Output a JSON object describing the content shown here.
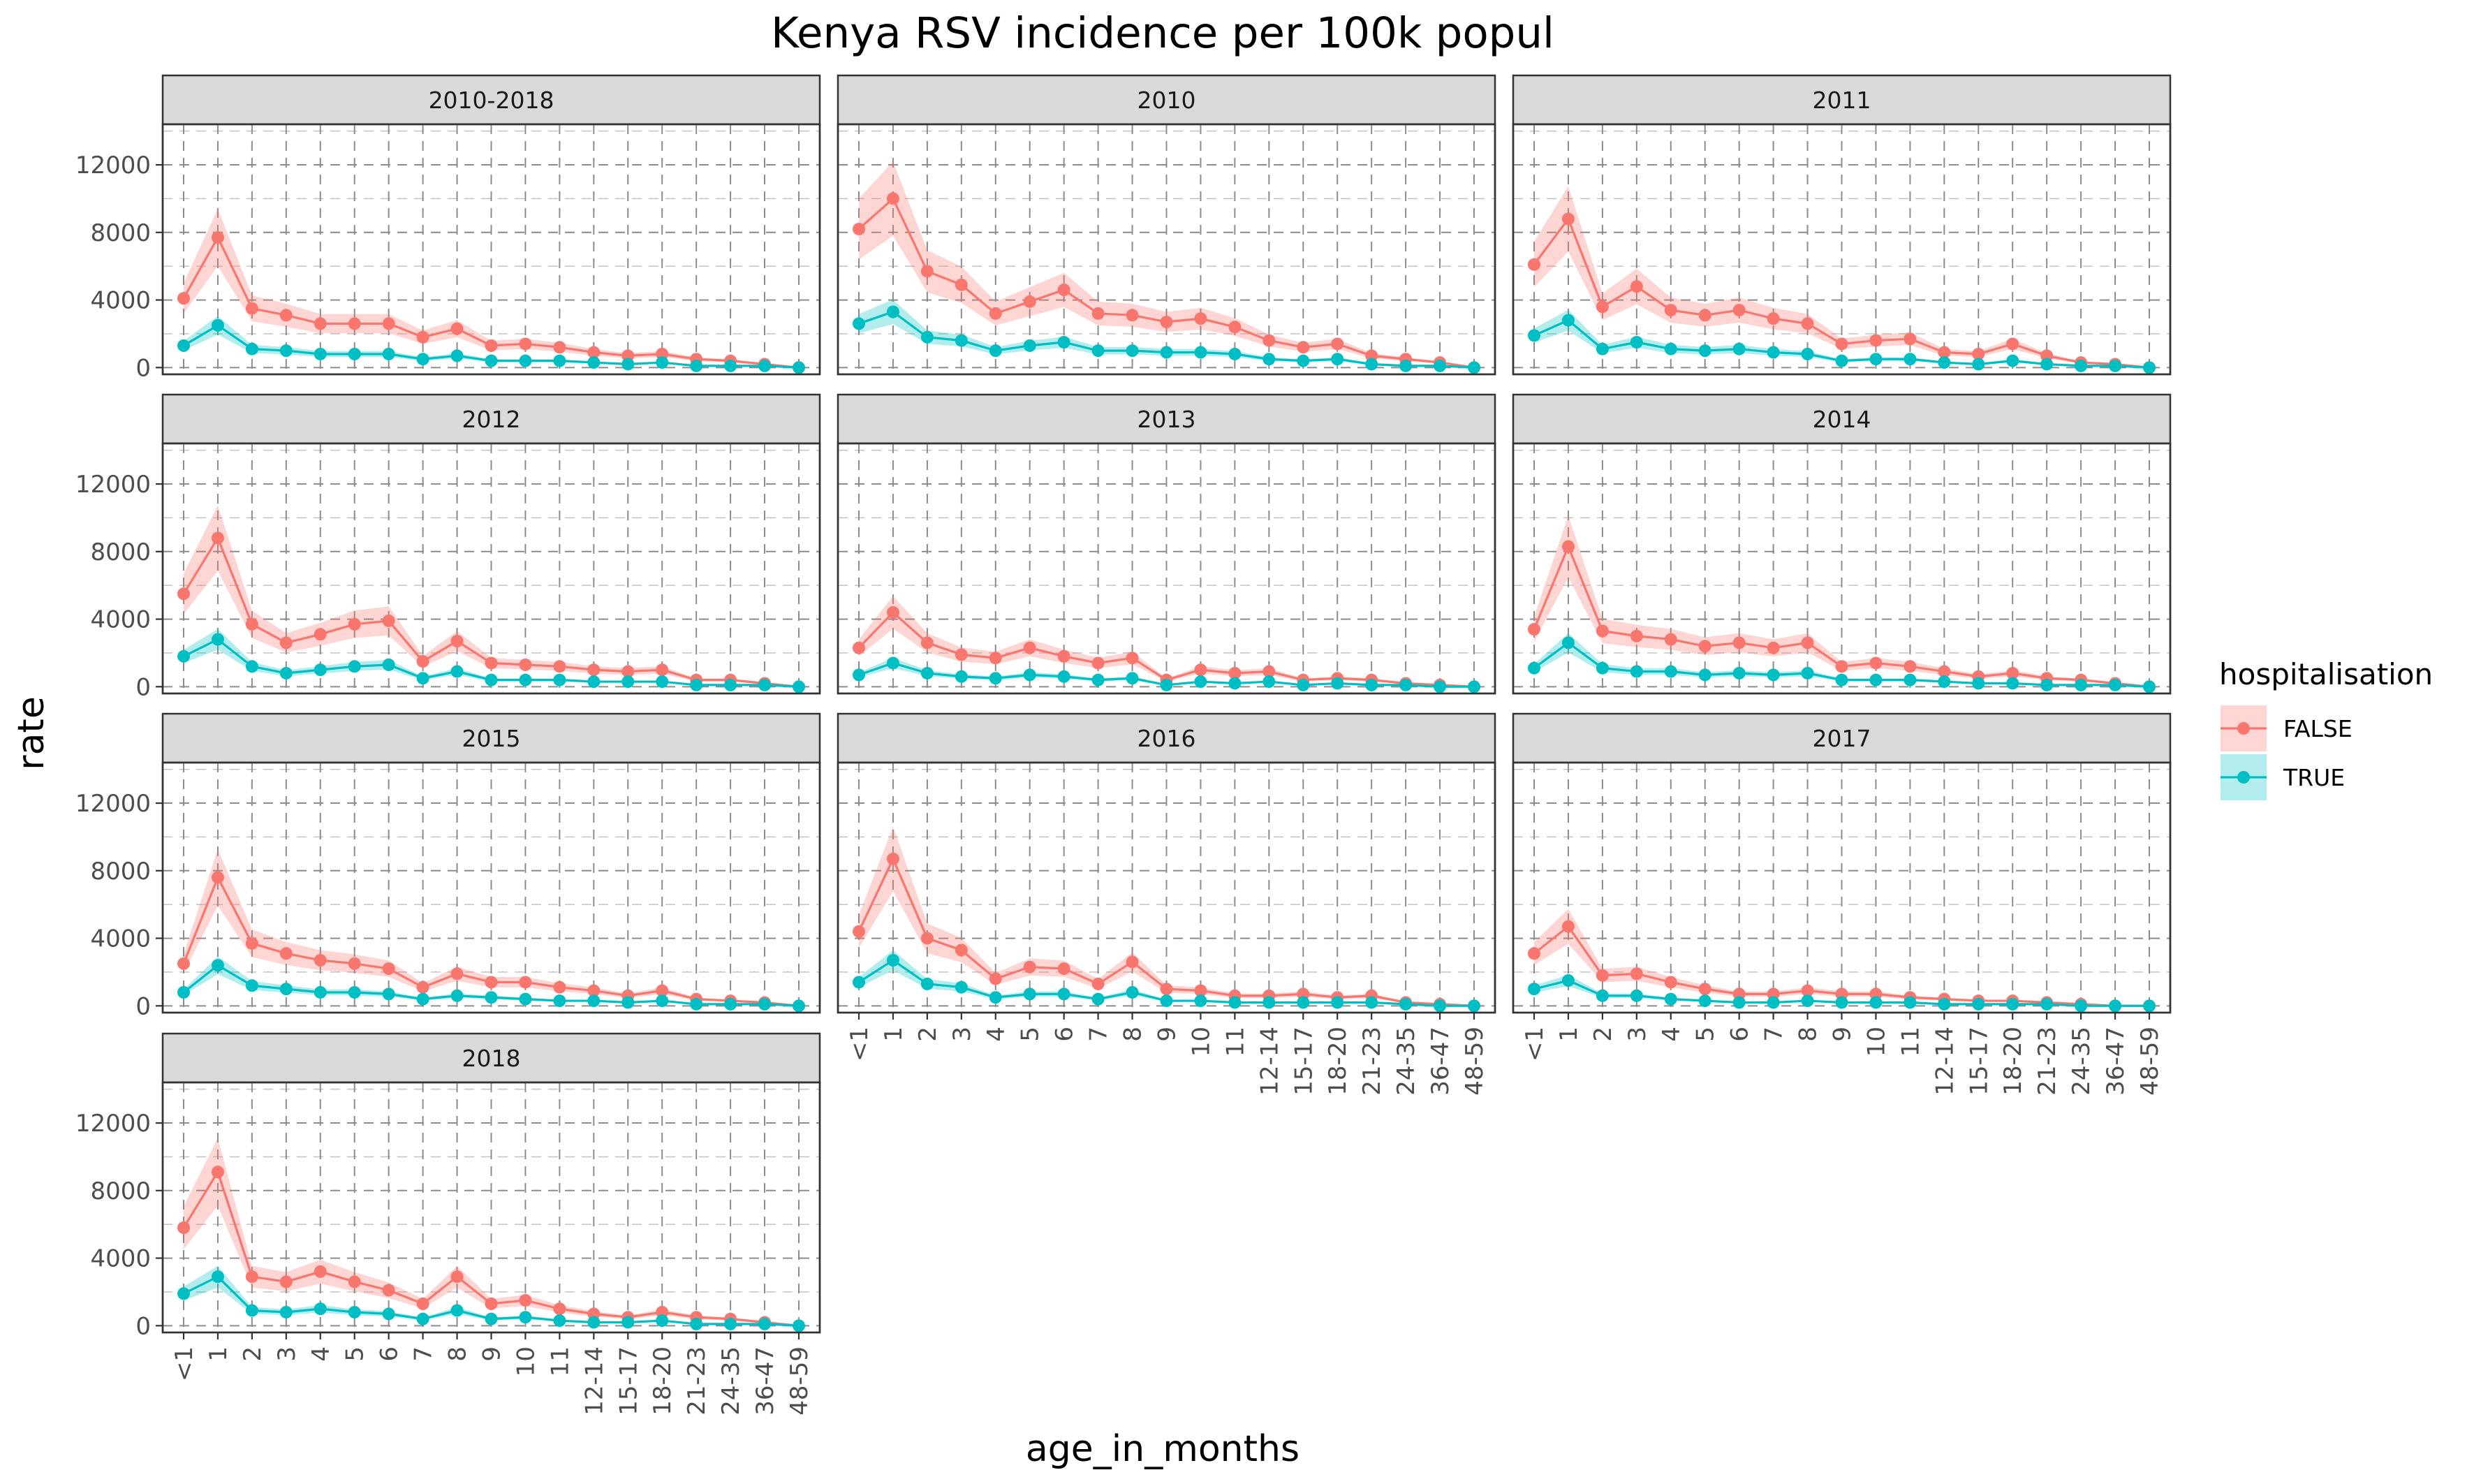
{
  "chart_data": {
    "type": "line",
    "title": "Kenya RSV incidence per 100k popul",
    "xlabel": "age_in_months",
    "ylabel": "rate",
    "ylim": [
      -400,
      14400
    ],
    "y_ticks": [
      0,
      4000,
      8000,
      12000
    ],
    "y_tick_labels": [
      "0",
      "4000",
      "8000",
      "12000"
    ],
    "grid": true,
    "legend": {
      "title": "hospitalisation",
      "placement": "right",
      "entries": [
        {
          "label": "FALSE",
          "color": "#F8766D",
          "ribbon_color": "#F8766D"
        },
        {
          "label": "TRUE",
          "color": "#00BFC4",
          "ribbon_color": "#00BFC4"
        }
      ]
    },
    "categories": [
      "<1",
      "1",
      "2",
      "3",
      "4",
      "5",
      "6",
      "7",
      "8",
      "9",
      "10",
      "11",
      "12-14",
      "15-17",
      "18-20",
      "21-23",
      "24-35",
      "36-47",
      "48-59"
    ],
    "facets": [
      {
        "label": "2010-2018",
        "series": [
          {
            "name": "FALSE",
            "values": [
              4100,
              7700,
              3500,
              3100,
              2600,
              2600,
              2600,
              1800,
              2300,
              1300,
              1400,
              1200,
              900,
              700,
              800,
              500,
              400,
              200,
              0
            ]
          },
          {
            "name": "TRUE",
            "values": [
              1300,
              2500,
              1100,
              1000,
              800,
              800,
              800,
              500,
              700,
              400,
              400,
              400,
              300,
              200,
              300,
              100,
              100,
              100,
              0
            ]
          }
        ]
      },
      {
        "label": "2010",
        "series": [
          {
            "name": "FALSE",
            "values": [
              8200,
              10000,
              5700,
              4900,
              3200,
              3900,
              4600,
              3200,
              3100,
              2700,
              2900,
              2400,
              1600,
              1200,
              1400,
              700,
              500,
              300,
              0
            ]
          },
          {
            "name": "TRUE",
            "values": [
              2600,
              3300,
              1800,
              1600,
              1000,
              1300,
              1500,
              1000,
              1000,
              900,
              900,
              800,
              500,
              400,
              500,
              200,
              100,
              100,
              0
            ]
          }
        ]
      },
      {
        "label": "2011",
        "series": [
          {
            "name": "FALSE",
            "values": [
              6100,
              8800,
              3600,
              4800,
              3400,
              3100,
              3400,
              2900,
              2600,
              1400,
              1600,
              1700,
              900,
              800,
              1400,
              700,
              300,
              200,
              0
            ]
          },
          {
            "name": "TRUE",
            "values": [
              1900,
              2800,
              1100,
              1500,
              1100,
              1000,
              1100,
              900,
              800,
              400,
              500,
              500,
              300,
              200,
              400,
              200,
              100,
              100,
              0
            ]
          }
        ]
      },
      {
        "label": "2012",
        "series": [
          {
            "name": "FALSE",
            "values": [
              5500,
              8800,
              3700,
              2600,
              3100,
              3700,
              3900,
              1500,
              2700,
              1400,
              1300,
              1200,
              1000,
              900,
              1000,
              400,
              400,
              200,
              0
            ]
          },
          {
            "name": "TRUE",
            "values": [
              1800,
              2800,
              1200,
              800,
              1000,
              1200,
              1300,
              500,
              900,
              400,
              400,
              400,
              300,
              300,
              300,
              100,
              100,
              100,
              0
            ]
          }
        ]
      },
      {
        "label": "2013",
        "series": [
          {
            "name": "FALSE",
            "values": [
              2300,
              4400,
              2600,
              1900,
              1700,
              2300,
              1800,
              1400,
              1700,
              400,
              1000,
              800,
              900,
              400,
              500,
              400,
              200,
              100,
              0
            ]
          },
          {
            "name": "TRUE",
            "values": [
              700,
              1400,
              800,
              600,
              500,
              700,
              600,
              400,
              500,
              100,
              300,
              200,
              300,
              100,
              200,
              100,
              100,
              0,
              0
            ]
          }
        ]
      },
      {
        "label": "2014",
        "series": [
          {
            "name": "FALSE",
            "values": [
              3400,
              8300,
              3300,
              3000,
              2800,
              2400,
              2600,
              2300,
              2600,
              1200,
              1400,
              1200,
              900,
              600,
              800,
              500,
              400,
              200,
              0
            ]
          },
          {
            "name": "TRUE",
            "values": [
              1100,
              2600,
              1100,
              900,
              900,
              700,
              800,
              700,
              800,
              400,
              400,
              400,
              300,
              200,
              200,
              100,
              100,
              100,
              0
            ]
          }
        ]
      },
      {
        "label": "2015",
        "series": [
          {
            "name": "FALSE",
            "values": [
              2500,
              7600,
              3700,
              3100,
              2700,
              2500,
              2200,
              1100,
              1900,
              1400,
              1400,
              1100,
              900,
              600,
              900,
              400,
              300,
              200,
              0
            ]
          },
          {
            "name": "TRUE",
            "values": [
              800,
              2400,
              1200,
              1000,
              800,
              800,
              700,
              400,
              600,
              500,
              400,
              300,
              300,
              200,
              300,
              100,
              100,
              100,
              0
            ]
          }
        ]
      },
      {
        "label": "2016",
        "series": [
          {
            "name": "FALSE",
            "values": [
              4400,
              8700,
              4000,
              3300,
              1600,
              2300,
              2200,
              1300,
              2600,
              1000,
              900,
              600,
              600,
              700,
              500,
              600,
              200,
              100,
              0
            ]
          },
          {
            "name": "TRUE",
            "values": [
              1400,
              2700,
              1300,
              1100,
              500,
              700,
              700,
              400,
              800,
              300,
              300,
              200,
              200,
              200,
              200,
              200,
              100,
              0,
              0
            ]
          }
        ]
      },
      {
        "label": "2017",
        "series": [
          {
            "name": "FALSE",
            "values": [
              3100,
              4700,
              1800,
              1900,
              1400,
              1000,
              700,
              700,
              900,
              700,
              700,
              500,
              400,
              300,
              300,
              200,
              100,
              0,
              0
            ]
          },
          {
            "name": "TRUE",
            "values": [
              1000,
              1500,
              600,
              600,
              400,
              300,
              200,
              200,
              300,
              200,
              200,
              200,
              100,
              100,
              100,
              100,
              0,
              0,
              0
            ]
          }
        ]
      },
      {
        "label": "2018",
        "series": [
          {
            "name": "FALSE",
            "values": [
              5800,
              9100,
              2900,
              2600,
              3200,
              2600,
              2100,
              1300,
              2900,
              1300,
              1500,
              1000,
              700,
              500,
              800,
              500,
              400,
              200,
              0
            ]
          },
          {
            "name": "TRUE",
            "values": [
              1900,
              2900,
              900,
              800,
              1000,
              800,
              700,
              400,
              900,
              400,
              500,
              300,
              200,
              200,
              300,
              100,
              100,
              100,
              0
            ]
          }
        ]
      }
    ]
  }
}
